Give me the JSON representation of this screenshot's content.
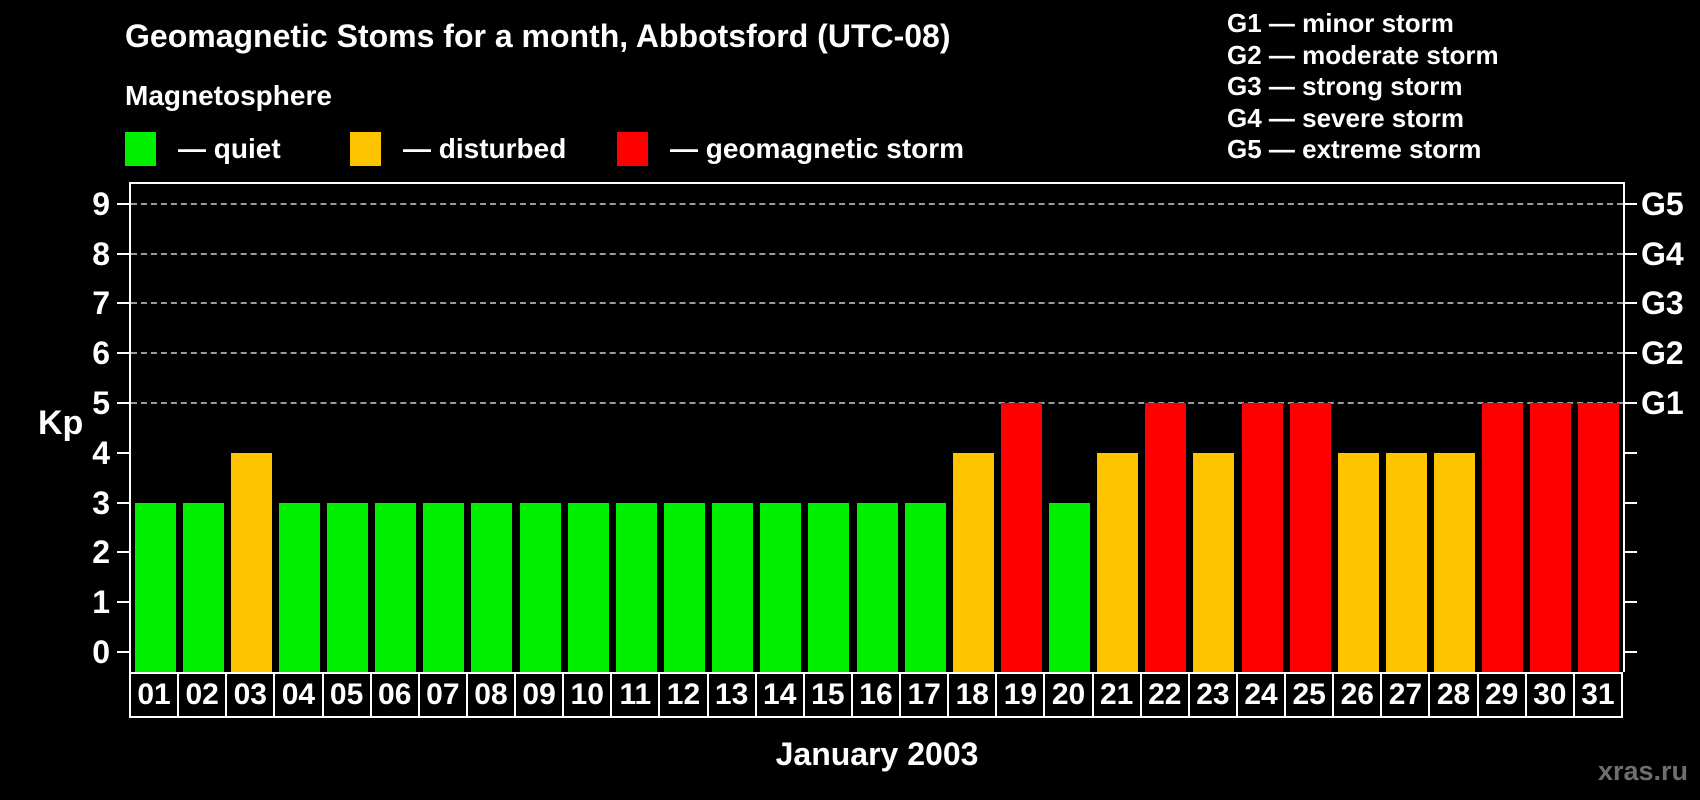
{
  "title": "Geomagnetic Stoms for a month, Abbotsford (UTC-08)",
  "month_label": "January 2003",
  "watermark": "xras.ru",
  "legend": {
    "heading": "Magnetosphere",
    "items": [
      {
        "name": "quiet",
        "label": "— quiet",
        "color": "#00f000"
      },
      {
        "name": "disturbed",
        "label": "— disturbed",
        "color": "#ffc400"
      },
      {
        "name": "storm",
        "label": "— geomagnetic storm",
        "color": "#ff0000"
      }
    ]
  },
  "g_scale_legend": [
    "G1 — minor storm",
    "G2 — moderate storm",
    "G3 — strong storm",
    "G4 — severe storm",
    "G5 — extreme storm"
  ],
  "chart_data": {
    "type": "bar",
    "title": "Geomagnetic Stoms for a month, Abbotsford (UTC-08)",
    "xlabel": "January 2003",
    "ylabel": "Kp",
    "ylim": [
      0,
      9
    ],
    "grid": "horizontal dashed lines at Kp 5-9 (storm levels)",
    "legend_position": "top",
    "categories": [
      "01",
      "02",
      "03",
      "04",
      "05",
      "06",
      "07",
      "08",
      "09",
      "10",
      "11",
      "12",
      "13",
      "14",
      "15",
      "16",
      "17",
      "18",
      "19",
      "20",
      "21",
      "22",
      "23",
      "24",
      "25",
      "26",
      "27",
      "28",
      "29",
      "30",
      "31"
    ],
    "values": [
      3,
      3,
      4,
      3,
      3,
      3,
      3,
      3,
      3,
      3,
      3,
      3,
      3,
      3,
      3,
      3,
      3,
      4,
      5,
      3,
      4,
      5,
      4,
      5,
      5,
      4,
      4,
      4,
      5,
      5,
      5
    ],
    "levels": [
      "quiet",
      "quiet",
      "disturbed",
      "quiet",
      "quiet",
      "quiet",
      "quiet",
      "quiet",
      "quiet",
      "quiet",
      "quiet",
      "quiet",
      "quiet",
      "quiet",
      "quiet",
      "quiet",
      "quiet",
      "disturbed",
      "storm",
      "quiet",
      "disturbed",
      "storm",
      "disturbed",
      "storm",
      "storm",
      "disturbed",
      "disturbed",
      "disturbed",
      "storm",
      "storm",
      "storm"
    ],
    "colors": {
      "quiet": "#00f000",
      "disturbed": "#ffc400",
      "storm": "#ff0000"
    },
    "y_ticks": [
      0,
      1,
      2,
      3,
      4,
      5,
      6,
      7,
      8,
      9
    ],
    "right_axis": [
      {
        "kp": 5,
        "label": "G1"
      },
      {
        "kp": 6,
        "label": "G2"
      },
      {
        "kp": 7,
        "label": "G3"
      },
      {
        "kp": 8,
        "label": "G4"
      },
      {
        "kp": 9,
        "label": "G5"
      }
    ]
  }
}
